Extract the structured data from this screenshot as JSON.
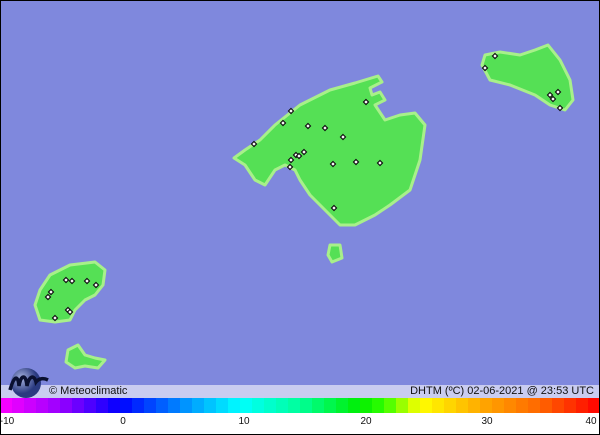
{
  "map": {
    "sea_color": "#7f88dd",
    "land_color": "#55e055",
    "coast_color": "#a8f08a",
    "station_marker": "diamond-marker"
  },
  "footer": {
    "credit": "© Meteoclimatic",
    "stamp": "DHTM (ºC)  02-06-2021 @ 23:53 UTC"
  },
  "colorbar": {
    "min": -10,
    "max": 40,
    "ticks": [
      "-10",
      "0",
      "10",
      "20",
      "30",
      "40"
    ]
  }
}
